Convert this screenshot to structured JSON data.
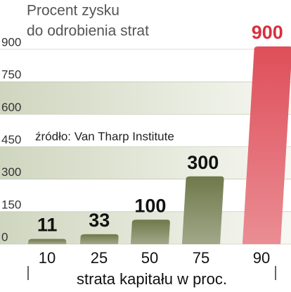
{
  "chart_data": {
    "type": "bar",
    "title": "Procent zysku",
    "subtitle": "do odrobienia strat",
    "source": "źródło: Van Tharp Institute",
    "x_label": "strata kapitału w proc.",
    "categories": [
      "10",
      "25",
      "50",
      "75",
      "90"
    ],
    "values": [
      11,
      33,
      100,
      300,
      900
    ],
    "colors": [
      "#55612a",
      "#55612a",
      "#55612a",
      "#55612a",
      "#d9303d"
    ],
    "label_colors": [
      "#111111",
      "#111111",
      "#111111",
      "#111111",
      "#d9303d"
    ],
    "ylim": [
      0,
      900
    ],
    "yticks": [
      0,
      150,
      300,
      450,
      600,
      750,
      900
    ],
    "grid": true
  }
}
